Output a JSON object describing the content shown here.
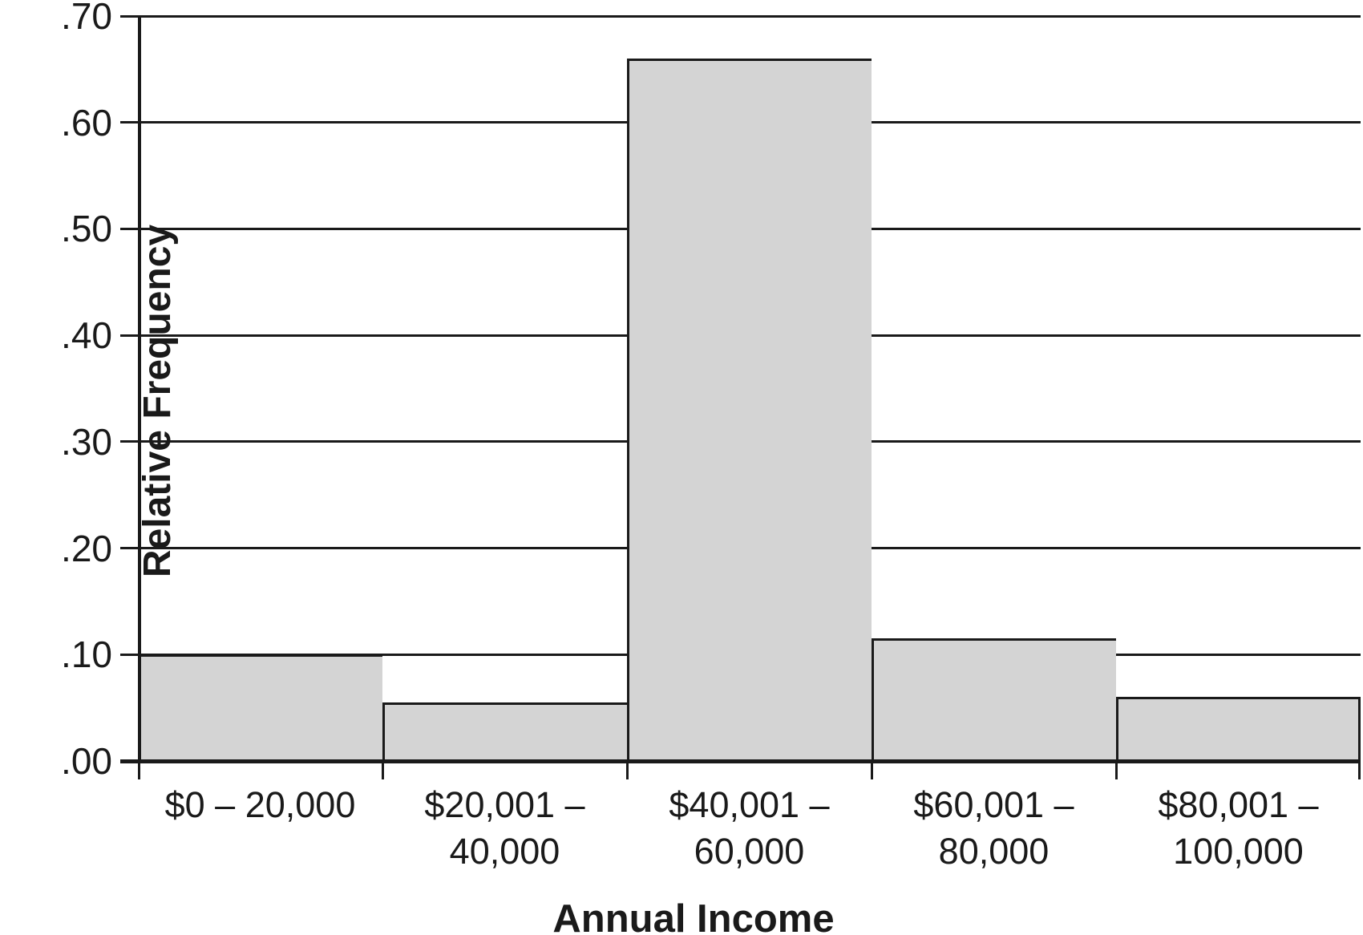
{
  "chart_data": {
    "type": "bar",
    "subtype": "histogram",
    "title": "",
    "xlabel": "Annual Income",
    "ylabel": "Relative Frequency",
    "categories": [
      "$0 – 20,000",
      "$20,001 – 40,000",
      "$40,001 – 60,000",
      "$60,001 – 80,000",
      "$80,001 – 100,000"
    ],
    "category_label_lines": [
      [
        "$0 – 20,000"
      ],
      [
        "$20,001 –",
        "40,000"
      ],
      [
        "$40,001 –",
        "60,000"
      ],
      [
        "$60,001 –",
        "80,000"
      ],
      [
        "$80,001 –",
        "100,000"
      ]
    ],
    "values": [
      0.1,
      0.055,
      0.66,
      0.115,
      0.06
    ],
    "ylim": [
      0.0,
      0.7
    ],
    "ytick_step": 0.1,
    "ytick_labels": [
      ".70",
      ".60",
      ".50",
      ".40",
      ".30",
      ".20",
      ".10",
      ".00"
    ],
    "grid": true,
    "legend": false,
    "bar_gap": 0,
    "colors": {
      "bar_fill": "#d4d4d4",
      "bar_border": "#1a1a1a",
      "gridline": "#1a1a1a",
      "text": "#1a1a1a",
      "background": "#ffffff"
    }
  }
}
